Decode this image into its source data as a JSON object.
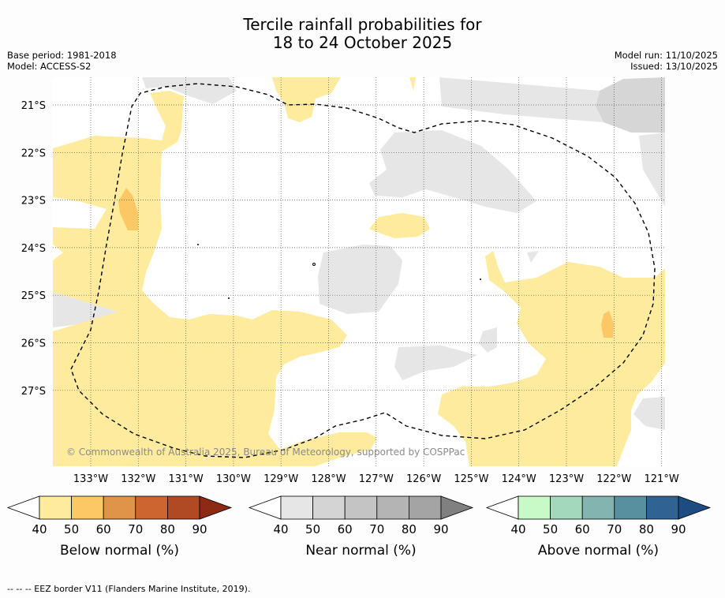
{
  "title_line1": "Tercile rainfall probabilities for",
  "title_line2": "18 to 24 October 2025",
  "base_period": "Base period: 1981-2018",
  "model": "Model: ACCESS-S2",
  "model_run": "Model run: 11/10/2025",
  "issued": "Issued: 13/10/2025",
  "copyright": "© Commonwealth of Australia 2025, Bureau of Meteorology, supported by COSPPac",
  "footnote": "--  --  -- EEZ border V11 (Flanders Marine Institute, 2019).",
  "latitudes": [
    "21°S",
    "22°S",
    "23°S",
    "24°S",
    "25°S",
    "26°S",
    "27°S"
  ],
  "longitudes": [
    "133°W",
    "132°W",
    "131°W",
    "130°W",
    "129°W",
    "128°W",
    "127°W",
    "126°W",
    "125°W",
    "124°W",
    "123°W",
    "122°W",
    "121°W"
  ],
  "colorbars": [
    {
      "title": "Below normal (%)",
      "ticks": [
        "40",
        "50",
        "60",
        "70",
        "80",
        "90"
      ],
      "colors": [
        "#ffffff",
        "#feeb9e",
        "#fcc865",
        "#e0944a",
        "#cc6530",
        "#b04a25",
        "#8c2a14"
      ]
    },
    {
      "title": "Near normal (%)",
      "ticks": [
        "40",
        "50",
        "60",
        "70",
        "80",
        "90"
      ],
      "colors": [
        "#ffffff",
        "#e6e6e6",
        "#d4d4d4",
        "#c4c4c4",
        "#b4b4b4",
        "#a4a4a4",
        "#808080"
      ]
    },
    {
      "title": "Above normal (%)",
      "ticks": [
        "40",
        "50",
        "60",
        "70",
        "80",
        "90"
      ],
      "colors": [
        "#ffffff",
        "#c8fac8",
        "#a4d8bc",
        "#84b4b0",
        "#5890a0",
        "#306294",
        "#1c4c80"
      ]
    }
  ],
  "colors": {
    "below_50": "#feeb9e",
    "below_60": "#fcc865",
    "near_50": "#e6e6e6",
    "near_60": "#d6d6d6",
    "grid": "#555555"
  }
}
